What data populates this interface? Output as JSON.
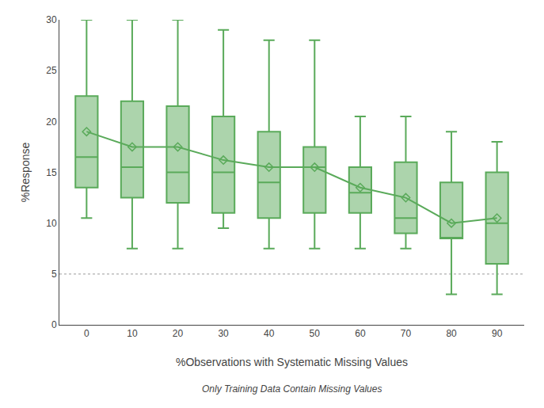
{
  "chart_data": {
    "type": "box",
    "xlabel": "%Observations with Systematic Missing Values",
    "ylabel": "%Response",
    "subtitle": "Only Training Data Contain Missing Values",
    "categories": [
      0,
      10,
      20,
      30,
      40,
      50,
      60,
      70,
      80,
      90
    ],
    "whisker_low": [
      10.5,
      7.5,
      7.5,
      9.5,
      7.5,
      7.5,
      7.5,
      7.5,
      3.0,
      3.0
    ],
    "q1": [
      13.5,
      12.5,
      12.0,
      11.0,
      10.5,
      11.0,
      11.0,
      9.0,
      8.5,
      6.0
    ],
    "median": [
      16.5,
      15.5,
      15.0,
      15.0,
      14.0,
      15.5,
      13.0,
      10.5,
      8.5,
      10.0
    ],
    "q3": [
      22.5,
      22.0,
      21.5,
      20.5,
      19.0,
      17.5,
      15.5,
      16.0,
      14.0,
      15.0
    ],
    "whisker_high": [
      30.0,
      30.0,
      30.0,
      29.0,
      28.0,
      28.0,
      20.5,
      20.5,
      19.0,
      18.0
    ],
    "mean": [
      19.0,
      17.5,
      17.5,
      16.2,
      15.5,
      15.5,
      13.5,
      12.5,
      10.0,
      10.5
    ],
    "color": "#5aaa5a",
    "marker": "diamond",
    "reference_line": {
      "value": 5,
      "color": "#b0b0b0",
      "line_style": "dotted"
    },
    "ylim": [
      0,
      30
    ],
    "yticks": [
      0,
      5,
      10,
      15,
      20,
      25,
      30
    ],
    "grid": false
  }
}
